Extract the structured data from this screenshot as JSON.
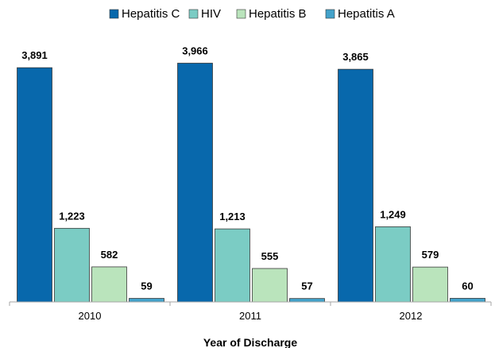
{
  "chart_data": {
    "type": "bar",
    "categories": [
      "2010",
      "2011",
      "2012"
    ],
    "series": [
      {
        "name": "Hepatitis C",
        "values": [
          3891,
          3966,
          3865
        ],
        "labels": [
          "3,891",
          "3,966",
          "3,865"
        ],
        "color": "#0868AC"
      },
      {
        "name": "HIV",
        "values": [
          1223,
          1213,
          1249
        ],
        "labels": [
          "1,223",
          "1,213",
          "1,249"
        ],
        "color": "#7BCCC4"
      },
      {
        "name": "Hepatitis B",
        "values": [
          582,
          555,
          579
        ],
        "labels": [
          "582",
          "555",
          "579"
        ],
        "color": "#BAE4BC"
      },
      {
        "name": "Hepatitis A",
        "values": [
          59,
          57,
          60
        ],
        "labels": [
          "59",
          "57",
          "60"
        ],
        "color": "#43A2CA"
      }
    ],
    "xlabel": "Year of Discharge",
    "ylabel": "",
    "ylim": [
      0,
      4000
    ],
    "grid": false,
    "legend": "top"
  }
}
